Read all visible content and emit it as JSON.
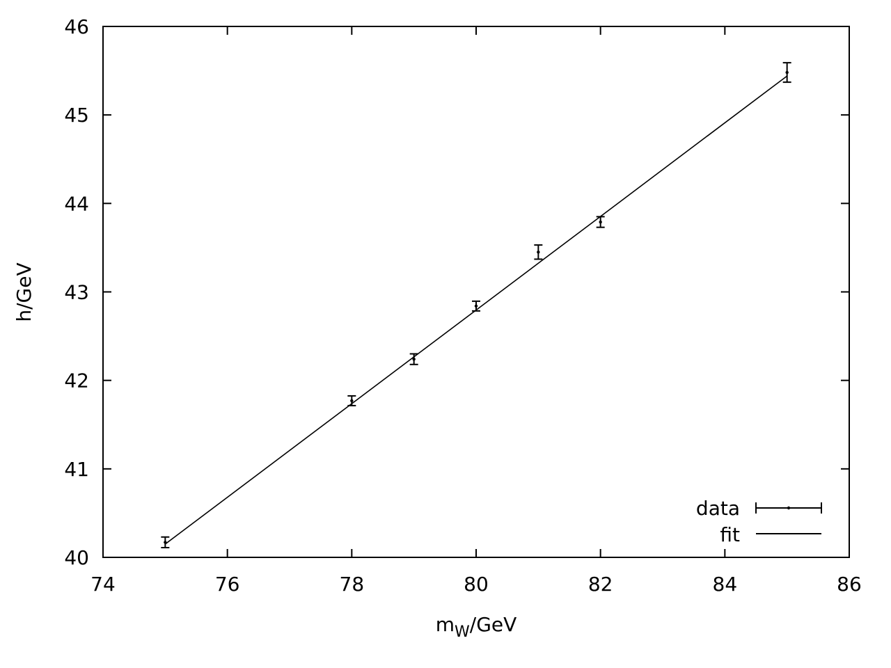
{
  "chart_data": {
    "type": "scatter",
    "title": "",
    "xlabel": {
      "main": "m",
      "sub": "W",
      "suffix": "/GeV"
    },
    "ylabel": "h/GeV",
    "xlim": [
      74,
      86
    ],
    "ylim": [
      40,
      46
    ],
    "xticks": [
      "74",
      "76",
      "78",
      "80",
      "82",
      "84",
      "86"
    ],
    "yticks": [
      "40",
      "41",
      "42",
      "43",
      "44",
      "45",
      "46"
    ],
    "grid": false,
    "legend_position": "bottom-right",
    "series": [
      {
        "name": "data",
        "kind": "points-with-errorbars",
        "points": [
          {
            "x": 75,
            "y": 40.17,
            "err": 0.06
          },
          {
            "x": 78,
            "y": 41.77,
            "err": 0.055
          },
          {
            "x": 79,
            "y": 42.24,
            "err": 0.06
          },
          {
            "x": 80,
            "y": 42.84,
            "err": 0.055
          },
          {
            "x": 81,
            "y": 43.45,
            "err": 0.08
          },
          {
            "x": 82,
            "y": 43.79,
            "err": 0.06
          },
          {
            "x": 85,
            "y": 45.48,
            "err": 0.11
          }
        ]
      },
      {
        "name": "fit",
        "kind": "line",
        "points": [
          {
            "x": 75,
            "y": 40.15
          },
          {
            "x": 85,
            "y": 45.44
          }
        ]
      }
    ],
    "colors": {
      "data": "#000000",
      "fit": "#000000",
      "axes": "#000000"
    }
  }
}
